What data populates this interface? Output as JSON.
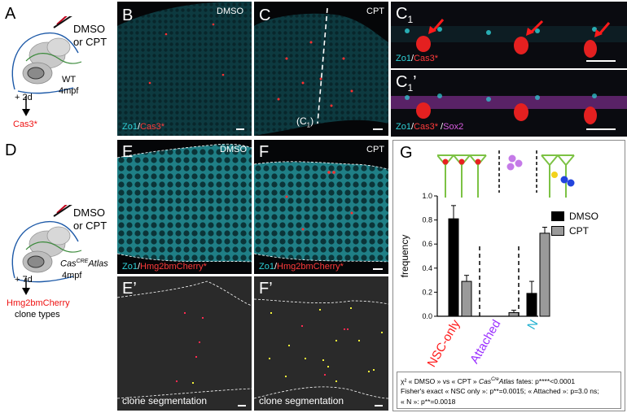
{
  "panels": {
    "A": {
      "letter": "A",
      "treatment_line1": "DMSO",
      "treatment_line2": "or CPT",
      "fish_line1": "WT",
      "fish_line2": "4mpf",
      "time": "+ 2d",
      "readout": "Cas3*"
    },
    "B": {
      "letter": "B",
      "condition": "DMSO",
      "stain1": "Zo1",
      "sep": "/",
      "stain2": "Cas3*"
    },
    "C": {
      "letter": "C",
      "condition": "CPT",
      "cut_label": "(C",
      "cut_sub": "1",
      "cut_end": ")"
    },
    "C1": {
      "letter": "C",
      "sub": "1",
      "stain1": "Zo1",
      "sep": "/",
      "stain2": "Cas3*"
    },
    "C1p": {
      "letter": "C",
      "sub": "1",
      "prime": "’",
      "stain1": "Zo1",
      "sep1": "/",
      "stain2": "Cas3*",
      "sep2": " /",
      "stain3": "Sox2"
    },
    "D": {
      "letter": "D",
      "treatment_line1": "DMSO",
      "treatment_line2": "or CPT",
      "fish_line1_base": "Cas",
      "fish_line1_sup": "CRE",
      "fish_line1_rest": "Atlas",
      "fish_line2": "4mpf",
      "time": "+ 7d",
      "readout": "Hmg2bmCherry",
      "readout2": "clone types"
    },
    "E": {
      "letter": "E",
      "condition": "DMSO",
      "stain1": "Zo1",
      "sep": "/",
      "stain2": "Hmg2bmCherry*"
    },
    "F": {
      "letter": "F",
      "condition": "CPT",
      "stain1": "Zo1",
      "sep": "/",
      "stain2": "Hmg2bmCherry*"
    },
    "Ep": {
      "letter": "E’",
      "caption": "clone segmentation"
    },
    "Fp": {
      "letter": "F’",
      "caption": "clone segmentation"
    },
    "G": {
      "letter": "G"
    }
  },
  "colors": {
    "zo1": "#2fd2d8",
    "cas3": "#ff3b3b",
    "sox2": "#d95ce0",
    "nsc_only": "#ff1a1a",
    "attached": "#9b30ff",
    "n": "#1fb0d0",
    "dmso_bar": "#000000",
    "cpt_bar": "#9a9a9a"
  },
  "chart_data": {
    "type": "bar",
    "categories": [
      "NSC-only",
      "Attached",
      "N"
    ],
    "series": [
      {
        "name": "DMSO",
        "values": [
          0.81,
          0.0,
          0.19
        ],
        "errors": [
          0.11,
          0.0,
          0.1
        ]
      },
      {
        "name": "CPT",
        "values": [
          0.29,
          0.03,
          0.69
        ],
        "errors": [
          0.05,
          0.02,
          0.05
        ]
      }
    ],
    "ylabel": "frequency",
    "xlabel": "",
    "ylim": [
      0,
      1.0
    ],
    "yticks": [
      "0.0",
      "0.2",
      "0.4",
      "0.6",
      "0.8",
      "1.0"
    ],
    "legend_position": "right"
  },
  "stats": {
    "line1_a": "χ² « DMSO » vs « CPT » ",
    "line1_b": "Cas",
    "line1_sup": "Cre",
    "line1_c": "Atlas",
    "line1_d": " fates: p****<0.0001",
    "line2": "Fisher's exact « NSC only »: p**=0.0015; « Attached »: p=3.0 ns;",
    "line3": "« N »: p**=0.0018"
  }
}
